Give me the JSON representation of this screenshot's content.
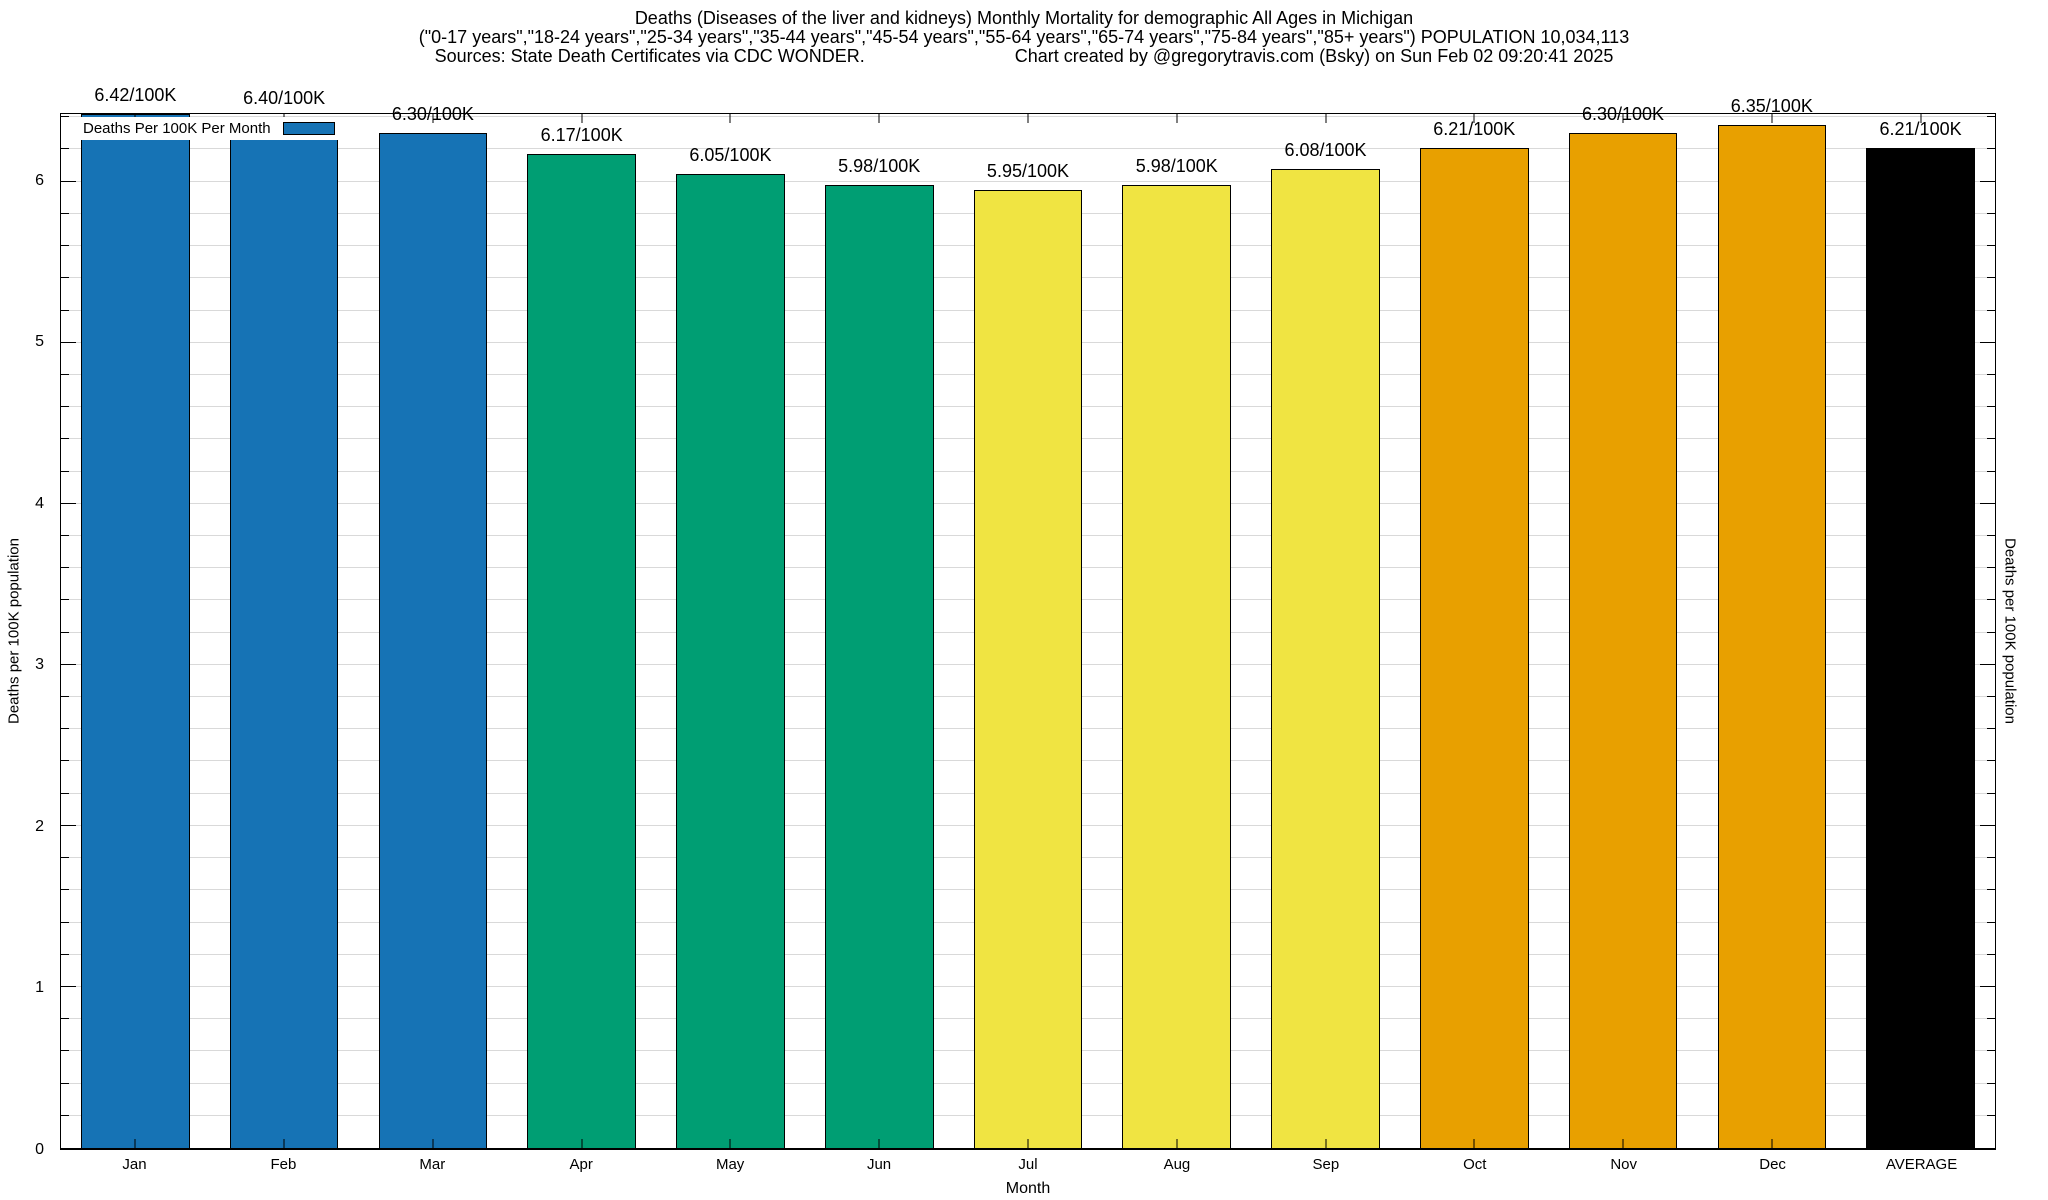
{
  "title": {
    "line1": "Deaths (Diseases of the liver and kidneys) Monthly Mortality for demographic All Ages in Michigan",
    "line2": "(\"0-17 years\",\"18-24 years\",\"25-34 years\",\"35-44 years\",\"45-54 years\",\"55-64 years\",\"65-74 years\",\"75-84 years\",\"85+ years\") POPULATION 10,034,113",
    "sources": "Sources: State Death Certificates via CDC WONDER.",
    "credit": "Chart created by @gregorytravis.com (Bsky) on Sun Feb 02 09:20:41 2025"
  },
  "legend": {
    "label": "Deaths Per 100K Per Month",
    "swatch_color": "#1673b5"
  },
  "axes": {
    "ylabel_left": "Deaths per 100K population",
    "ylabel_right": "Deaths per 100K population",
    "xlabel": "Month",
    "y_major_ticks": [
      0,
      1,
      2,
      3,
      4,
      5,
      6
    ],
    "y_minor_step": 0.2
  },
  "chart_data": {
    "type": "bar",
    "title": "Deaths (Diseases of the liver and kidneys) Monthly Mortality for demographic All Ages in Michigan",
    "xlabel": "Month",
    "ylabel": "Deaths per 100K population",
    "ylim": [
      0,
      6.42
    ],
    "grid": "horizontal minor gridlines every 0.2, light gray",
    "legend_position": "top-left inside plot",
    "categories": [
      "Jan",
      "Feb",
      "Mar",
      "Apr",
      "May",
      "Jun",
      "Jul",
      "Aug",
      "Sep",
      "Oct",
      "Nov",
      "Dec",
      "AVERAGE"
    ],
    "values": [
      6.42,
      6.4,
      6.3,
      6.17,
      6.05,
      5.98,
      5.95,
      5.98,
      6.08,
      6.21,
      6.3,
      6.35,
      6.21
    ],
    "bar_labels": [
      "6.42/100K",
      "6.40/100K",
      "6.30/100K",
      "6.17/100K",
      "6.05/100K",
      "5.98/100K",
      "5.95/100K",
      "5.98/100K",
      "6.08/100K",
      "6.21/100K",
      "6.30/100K",
      "6.35/100K",
      "6.21/100K"
    ],
    "bar_colors": [
      "#1673b5",
      "#1673b5",
      "#1673b5",
      "#009e73",
      "#009e73",
      "#009e73",
      "#f0e442",
      "#f0e442",
      "#f0e442",
      "#e8a000",
      "#e8a000",
      "#e8a000",
      "#000000"
    ],
    "grid_color": "#d9d9d9",
    "axis_color": "#000000"
  }
}
